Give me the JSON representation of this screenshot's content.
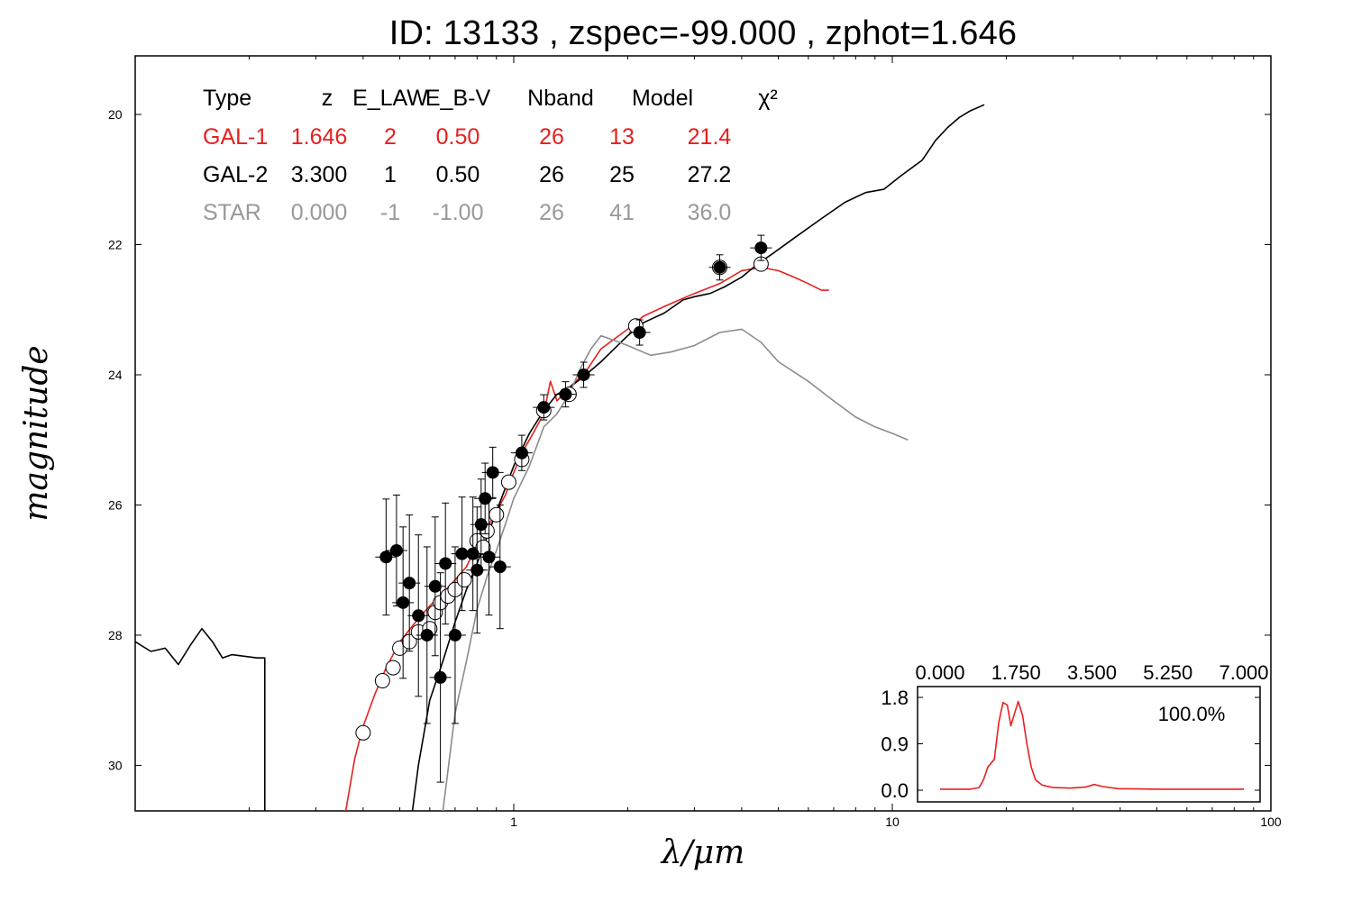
{
  "title": "ID:  13133 , zspec=-99.000 , zphot=1.646",
  "colors": {
    "gal1": "#e8201e",
    "gal2": "#000000",
    "star": "#8c8c8c"
  },
  "fit_table": {
    "headers": [
      "Type",
      "z",
      "E_LAW",
      "E_B-V",
      "Nband",
      "Model",
      "χ²"
    ],
    "rows": [
      {
        "type": "GAL-1",
        "z": "1.646",
        "elaw": "2",
        "ebv": "0.50",
        "nband": "26",
        "model": "13",
        "chi2": "21.4",
        "color": "#e8201e"
      },
      {
        "type": "GAL-2",
        "z": "3.300",
        "elaw": "1",
        "ebv": "0.50",
        "nband": "26",
        "model": "25",
        "chi2": "27.2",
        "color": "#000000"
      },
      {
        "type": "STAR",
        "z": "0.000",
        "elaw": "-1",
        "ebv": "-1.00",
        "nband": "26",
        "model": "41",
        "chi2": "36.0",
        "color": "#999999"
      }
    ]
  },
  "chart_data": [
    {
      "type": "scatter",
      "xlabel": "λ/μm",
      "ylabel": "magnitude",
      "xscale": "log",
      "xlim": [
        0.1,
        100
      ],
      "ylim": [
        30.7,
        19.1
      ],
      "x_ticks": [
        1,
        10,
        100
      ],
      "y_ticks": [
        20,
        22,
        24,
        26,
        28,
        30
      ],
      "series": [
        {
          "kind": "line",
          "color": "#e8201e",
          "points": [
            [
              0.36,
              30.7
            ],
            [
              0.38,
              29.9
            ],
            [
              0.4,
              29.4
            ],
            [
              0.43,
              28.9
            ],
            [
              0.46,
              28.5
            ],
            [
              0.5,
              28.1
            ],
            [
              0.55,
              27.8
            ],
            [
              0.6,
              27.55
            ],
            [
              0.65,
              27.35
            ],
            [
              0.7,
              27.15
            ],
            [
              0.75,
              26.95
            ],
            [
              0.8,
              26.6
            ],
            [
              0.85,
              26.35
            ],
            [
              0.9,
              26.1
            ],
            [
              0.95,
              25.85
            ],
            [
              1.0,
              25.5
            ],
            [
              1.05,
              25.2
            ],
            [
              1.1,
              25.0
            ],
            [
              1.2,
              24.6
            ],
            [
              1.25,
              24.1
            ],
            [
              1.3,
              24.4
            ],
            [
              1.4,
              24.2
            ],
            [
              1.55,
              23.95
            ],
            [
              1.7,
              23.6
            ],
            [
              2.0,
              23.3
            ],
            [
              2.2,
              23.1
            ],
            [
              2.5,
              22.95
            ],
            [
              3.0,
              22.75
            ],
            [
              3.5,
              22.6
            ],
            [
              4.0,
              22.4
            ],
            [
              4.5,
              22.35
            ],
            [
              5.0,
              22.4
            ],
            [
              5.5,
              22.5
            ],
            [
              6.0,
              22.6
            ],
            [
              6.5,
              22.7
            ],
            [
              6.8,
              22.7
            ]
          ]
        },
        {
          "kind": "line",
          "color": "#000000",
          "points": [
            [
              0.1,
              28.1
            ],
            [
              0.11,
              28.25
            ],
            [
              0.12,
              28.2
            ],
            [
              0.13,
              28.45
            ],
            [
              0.14,
              28.15
            ],
            [
              0.15,
              27.9
            ],
            [
              0.16,
              28.1
            ],
            [
              0.17,
              28.35
            ],
            [
              0.18,
              28.3
            ],
            [
              0.21,
              28.35
            ],
            [
              0.22,
              28.35
            ],
            [
              0.22,
              30.7
            ]
          ]
        },
        {
          "kind": "line",
          "color": "#000000",
          "points": [
            [
              0.54,
              30.7
            ],
            [
              0.56,
              30.0
            ],
            [
              0.6,
              29.0
            ],
            [
              0.65,
              28.4
            ],
            [
              0.7,
              27.8
            ],
            [
              0.75,
              27.3
            ],
            [
              0.8,
              26.9
            ],
            [
              0.9,
              26.1
            ],
            [
              1.0,
              25.4
            ],
            [
              1.1,
              24.9
            ],
            [
              1.2,
              24.55
            ],
            [
              1.3,
              24.3
            ],
            [
              1.4,
              24.2
            ],
            [
              1.55,
              24.0
            ],
            [
              1.7,
              23.8
            ],
            [
              2.0,
              23.4
            ],
            [
              2.2,
              23.2
            ],
            [
              2.5,
              23.05
            ],
            [
              2.8,
              22.85
            ],
            [
              3.0,
              22.8
            ],
            [
              3.3,
              22.75
            ],
            [
              3.6,
              22.65
            ],
            [
              4.0,
              22.5
            ],
            [
              4.4,
              22.3
            ],
            [
              4.8,
              22.15
            ],
            [
              5.5,
              21.9
            ],
            [
              6.5,
              21.6
            ],
            [
              7.5,
              21.35
            ],
            [
              8.5,
              21.2
            ],
            [
              9.5,
              21.15
            ],
            [
              10.5,
              20.95
            ],
            [
              12,
              20.7
            ],
            [
              13,
              20.4
            ],
            [
              14,
              20.2
            ],
            [
              15,
              20.05
            ],
            [
              16,
              19.95
            ],
            [
              17.5,
              19.85
            ]
          ]
        },
        {
          "kind": "line",
          "color": "#8c8c8c",
          "points": [
            [
              0.65,
              30.7
            ],
            [
              0.7,
              29.2
            ],
            [
              0.75,
              28.4
            ],
            [
              0.8,
              27.6
            ],
            [
              0.85,
              27.1
            ],
            [
              0.9,
              26.7
            ],
            [
              0.95,
              26.3
            ],
            [
              1.0,
              25.9
            ],
            [
              1.1,
              25.4
            ],
            [
              1.2,
              24.8
            ],
            [
              1.3,
              24.6
            ],
            [
              1.4,
              24.3
            ],
            [
              1.5,
              23.9
            ],
            [
              1.6,
              23.6
            ],
            [
              1.7,
              23.4
            ],
            [
              1.8,
              23.45
            ],
            [
              2.0,
              23.55
            ],
            [
              2.3,
              23.7
            ],
            [
              2.6,
              23.65
            ],
            [
              3.0,
              23.55
            ],
            [
              3.5,
              23.35
            ],
            [
              4.0,
              23.3
            ],
            [
              4.5,
              23.5
            ],
            [
              5.0,
              23.8
            ],
            [
              6.0,
              24.1
            ],
            [
              7.0,
              24.4
            ],
            [
              8.0,
              24.65
            ],
            [
              9.0,
              24.8
            ],
            [
              10.0,
              24.9
            ],
            [
              11.0,
              25.0
            ]
          ]
        },
        {
          "kind": "points",
          "marker": "open",
          "points": [
            [
              0.4,
              29.5
            ],
            [
              0.45,
              28.7
            ],
            [
              0.48,
              28.5
            ],
            [
              0.5,
              28.2
            ],
            [
              0.53,
              28.1
            ],
            [
              0.56,
              27.95
            ],
            [
              0.6,
              27.9
            ],
            [
              0.62,
              27.65
            ],
            [
              0.64,
              27.5
            ],
            [
              0.67,
              27.4
            ],
            [
              0.7,
              27.3
            ],
            [
              0.74,
              27.15
            ],
            [
              0.8,
              26.55
            ],
            [
              0.83,
              26.65
            ],
            [
              0.85,
              26.4
            ],
            [
              0.9,
              26.15
            ],
            [
              0.97,
              25.65
            ],
            [
              1.05,
              25.3
            ],
            [
              1.2,
              24.55
            ],
            [
              1.4,
              24.3
            ],
            [
              2.1,
              23.25
            ],
            [
              3.5,
              22.35
            ],
            [
              4.5,
              22.3
            ]
          ]
        },
        {
          "kind": "points",
          "marker": "filled",
          "points": [
            [
              0.46,
              26.8
            ],
            [
              0.49,
              26.7
            ],
            [
              0.51,
              27.5
            ],
            [
              0.53,
              27.2
            ],
            [
              0.56,
              27.7
            ],
            [
              0.59,
              28.0
            ],
            [
              0.62,
              27.25
            ],
            [
              0.64,
              28.65
            ],
            [
              0.66,
              26.9
            ],
            [
              0.7,
              28.0
            ],
            [
              0.73,
              26.75
            ],
            [
              0.78,
              26.75
            ],
            [
              0.8,
              27.0
            ],
            [
              0.82,
              26.3
            ],
            [
              0.84,
              25.9
            ],
            [
              0.86,
              26.8
            ],
            [
              0.88,
              25.5
            ],
            [
              0.92,
              26.95
            ],
            [
              1.05,
              25.2
            ],
            [
              1.2,
              24.5
            ],
            [
              1.37,
              24.3
            ],
            [
              1.53,
              24.0
            ],
            [
              2.15,
              23.35
            ],
            [
              3.5,
              22.35
            ],
            [
              4.5,
              22.05
            ]
          ]
        }
      ]
    },
    {
      "type": "line",
      "title": "",
      "xlim": [
        0,
        7
      ],
      "ylim": [
        0,
        1.8
      ],
      "x_tick_labels": [
        "0.000",
        "1.750",
        "3.500",
        "5.250",
        "7.000"
      ],
      "y_tick_labels": [
        "0.0",
        "0.9",
        "1.8"
      ],
      "annotation": "100.0%",
      "color": "#e8201e",
      "points": [
        [
          0.0,
          0.02
        ],
        [
          0.7,
          0.02
        ],
        [
          0.9,
          0.05
        ],
        [
          1.0,
          0.2
        ],
        [
          1.1,
          0.45
        ],
        [
          1.25,
          0.6
        ],
        [
          1.35,
          1.3
        ],
        [
          1.45,
          1.7
        ],
        [
          1.55,
          1.65
        ],
        [
          1.63,
          1.25
        ],
        [
          1.72,
          1.5
        ],
        [
          1.8,
          1.72
        ],
        [
          1.9,
          1.45
        ],
        [
          2.0,
          0.9
        ],
        [
          2.1,
          0.45
        ],
        [
          2.2,
          0.2
        ],
        [
          2.35,
          0.1
        ],
        [
          2.6,
          0.05
        ],
        [
          3.0,
          0.04
        ],
        [
          3.35,
          0.06
        ],
        [
          3.55,
          0.11
        ],
        [
          3.75,
          0.07
        ],
        [
          4.1,
          0.03
        ],
        [
          5.0,
          0.02
        ],
        [
          7.0,
          0.02
        ]
      ]
    }
  ]
}
